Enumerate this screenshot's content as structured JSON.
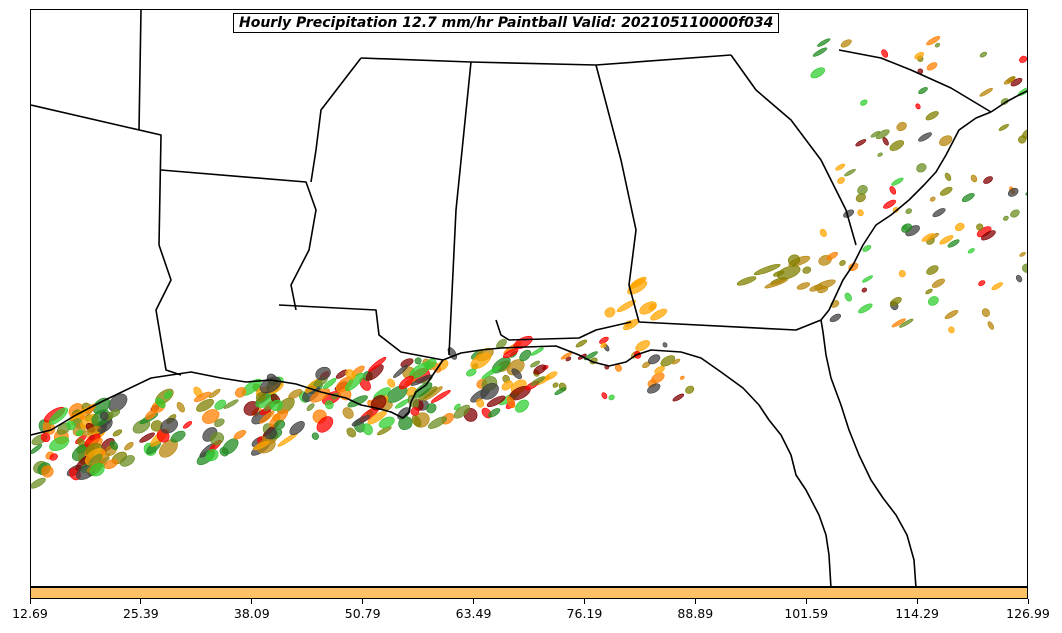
{
  "title": "Hourly Precipitation 12.7 mm/hr Paintball Valid: 202105110000f034",
  "colorbar": {
    "color": "#ffc266",
    "ticks": [
      "12.69",
      "25.39",
      "38.09",
      "50.79",
      "63.49",
      "76.19",
      "88.89",
      "101.59",
      "114.29",
      "126.99"
    ]
  },
  "member_colors": [
    "#228b22",
    "#ff7f00",
    "#ff0000",
    "#32cd32",
    "#800000",
    "#ffa500",
    "#808000",
    "#404040",
    "#b8860b",
    "#6b8e23"
  ]
}
